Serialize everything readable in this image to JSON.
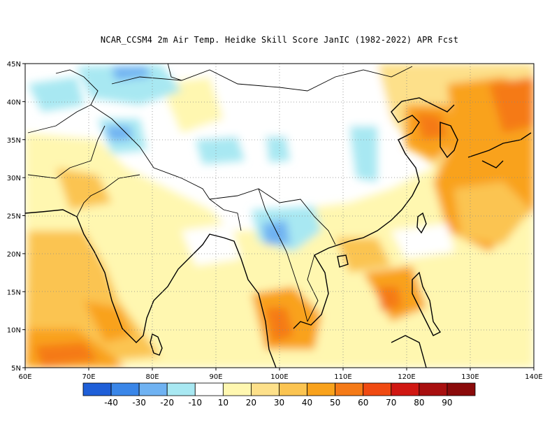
{
  "title": "NCAR_CCSM4  2m Air Temp. Heidke Skill Score JanIC (1982-2022) APR Fcst",
  "map": {
    "lon_range": [
      60,
      140
    ],
    "lat_range": [
      5,
      45
    ],
    "lon_ticks": [
      "60E",
      "70E",
      "80E",
      "90E",
      "100E",
      "110E",
      "120E",
      "130E",
      "140E"
    ],
    "lat_ticks": [
      "5N",
      "10N",
      "15N",
      "20N",
      "25N",
      "30N",
      "35N",
      "40N",
      "45N"
    ]
  },
  "colorbar": {
    "colors": [
      "#1f5fd8",
      "#3a86e8",
      "#6fb2f2",
      "#a8e8f2",
      "#ffffff",
      "#fff7b0",
      "#fde08a",
      "#fbc451",
      "#f9a21c",
      "#f57a17",
      "#f04a12",
      "#d01712",
      "#a80f0f",
      "#8a0a0a"
    ],
    "labels": [
      "-40",
      "-30",
      "-20",
      "-10",
      "10",
      "20",
      "30",
      "40",
      "50",
      "60",
      "70",
      "80",
      "90"
    ]
  }
}
